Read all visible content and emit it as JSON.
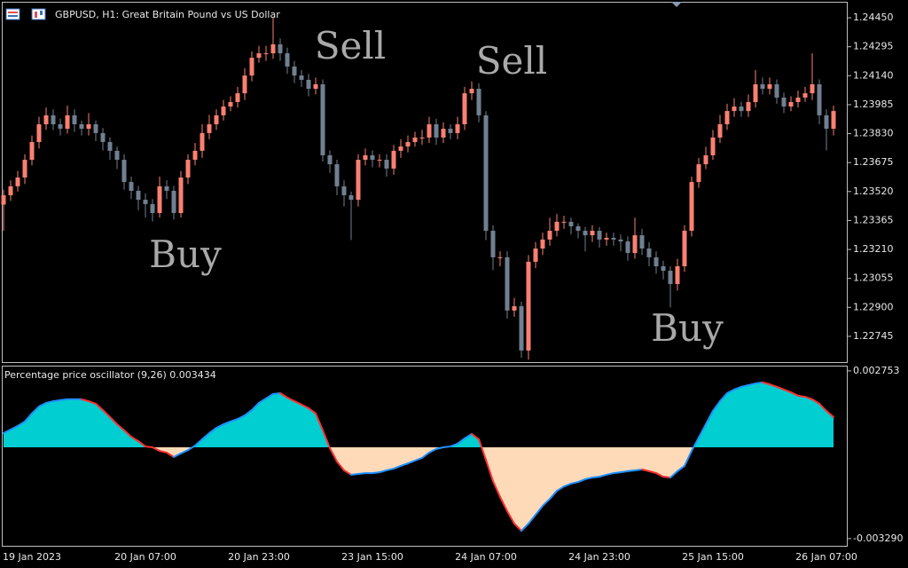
{
  "chart_data": [
    {
      "type": "candlestick",
      "title": "GBPUSD, H1:  Great Britain Pound vs US Dollar",
      "annotations": [
        "Sell",
        "Sell",
        "Buy",
        "Buy"
      ],
      "categories": [
        null,
        null,
        null,
        null,
        "19 Jan 2023",
        null,
        null,
        null,
        null,
        null,
        null,
        null,
        null,
        null,
        null,
        null,
        null,
        null,
        null,
        null,
        "20 Jan 07:00",
        null,
        null,
        null,
        null,
        null,
        null,
        null,
        null,
        null,
        null,
        null,
        null,
        null,
        null,
        null,
        "20 Jan 23:00",
        null,
        null,
        null,
        null,
        null,
        null,
        null,
        null,
        null,
        null,
        null,
        null,
        null,
        null,
        null,
        "23 Jan 15:00",
        null,
        null,
        null,
        null,
        null,
        null,
        null,
        null,
        null,
        null,
        null,
        null,
        null,
        null,
        null,
        "24 Jan 07:00",
        null,
        null,
        null,
        null,
        null,
        null,
        null,
        null,
        null,
        null,
        null,
        null,
        null,
        null,
        null,
        "24 Jan 23:00",
        null,
        null,
        null,
        null,
        null,
        null,
        null,
        null,
        null,
        null,
        null,
        null,
        null,
        null,
        null,
        "25 Jan 15:00",
        null,
        null,
        null,
        null,
        null,
        null,
        null,
        null,
        null,
        null,
        null,
        null,
        null,
        null,
        null,
        "26 Jan 07:00",
        null
      ],
      "open": [
        1.2345,
        1.235,
        1.23548,
        1.23595,
        1.2369,
        1.23785,
        1.2388,
        1.23928,
        1.2388,
        1.23856,
        1.23928,
        1.2388,
        1.23856,
        1.2388,
        1.23833,
        1.23785,
        1.23738,
        1.2369,
        1.23571,
        1.23524,
        1.23476,
        1.23453,
        1.23405,
        1.23548,
        1.23524,
        1.23405,
        1.23595,
        1.2369,
        1.23738,
        1.23833,
        1.2388,
        1.23928,
        1.23975,
        1.23999,
        1.24046,
        1.24141,
        1.24236,
        1.2426,
        1.2426,
        1.24308,
        1.2426,
        1.24189,
        1.24141,
        1.24118,
        1.2407,
        1.24094,
        1.23714,
        1.23666,
        1.23548,
        1.235,
        1.23476,
        1.2369,
        1.23714,
        1.2369,
        1.2369,
        1.23643,
        1.23738,
        1.23761,
        1.23785,
        1.23809,
        1.23809,
        1.2388,
        1.23809,
        1.23856,
        1.23833,
        1.2388,
        1.24046,
        1.2407,
        1.23928,
        1.2331,
        1.23168,
        1.23168,
        1.22883,
        1.22906,
        1.22669,
        1.23144,
        1.23215,
        1.23263,
        1.2331,
        1.23358,
        1.23358,
        1.23334,
        1.2331,
        1.23286,
        1.2331,
        1.23263,
        1.23272,
        1.23263,
        1.23253,
        1.23191,
        1.23286,
        1.23215,
        1.23168,
        1.2312,
        1.23096,
        1.23025,
        1.2312,
        1.2331,
        1.23571,
        1.23666,
        1.23714,
        1.23809,
        1.2388,
        1.23951,
        1.23975,
        1.23951,
        1.23999,
        1.24094,
        1.2407,
        1.24094,
        1.24023,
        1.23975,
        1.23999,
        1.24023,
        1.24046,
        1.24094,
        1.23928,
        1.23856
      ],
      "high": [
        1.2353,
        1.2358,
        1.2363,
        1.2372,
        1.2382,
        1.2392,
        1.2397,
        1.2396,
        1.2391,
        1.2398,
        1.2396,
        1.239,
        1.2394,
        1.239,
        1.2386,
        1.2381,
        1.2376,
        1.2372,
        1.236,
        1.2355,
        1.2351,
        1.2348,
        1.236,
        1.2358,
        1.2355,
        1.2363,
        1.2372,
        1.2378,
        1.2388,
        1.2393,
        1.2396,
        1.2401,
        1.2403,
        1.2408,
        1.2418,
        1.2427,
        1.243,
        1.243,
        1.2445,
        1.2434,
        1.2429,
        1.2422,
        1.2417,
        1.2415,
        1.2413,
        1.2412,
        1.2374,
        1.2369,
        1.2358,
        1.2352,
        1.2372,
        1.2375,
        1.2374,
        1.2372,
        1.2372,
        1.2377,
        1.238,
        1.2382,
        1.2384,
        1.2385,
        1.2392,
        1.2391,
        1.2389,
        1.2388,
        1.2392,
        1.2408,
        1.2411,
        1.241,
        1.2395,
        1.2334,
        1.232,
        1.232,
        1.2295,
        1.2293,
        1.2318,
        1.2325,
        1.233,
        1.2338,
        1.234,
        1.2339,
        1.2338,
        1.2335,
        1.2333,
        1.2334,
        1.2333,
        1.233,
        1.233,
        1.2329,
        1.2328,
        1.2338,
        1.2332,
        1.2325,
        1.232,
        1.2315,
        1.2312,
        1.2316,
        1.2334,
        1.236,
        1.237,
        1.2376,
        1.2385,
        1.2393,
        1.2399,
        1.2402,
        1.24,
        1.2404,
        1.2417,
        1.2413,
        1.2413,
        1.2412,
        1.2405,
        1.2403,
        1.2406,
        1.2408,
        1.2426,
        1.2412,
        1.2396,
        1.2398
      ],
      "low": [
        1.2331,
        1.2347,
        1.2352,
        1.2356,
        1.2366,
        1.2375,
        1.2385,
        1.2385,
        1.2382,
        1.2383,
        1.2384,
        1.2382,
        1.2382,
        1.2379,
        1.2374,
        1.2369,
        1.2364,
        1.2353,
        1.2348,
        1.2342,
        1.2338,
        1.2336,
        1.2338,
        1.2348,
        1.2337,
        1.2338,
        1.2356,
        1.2366,
        1.237,
        1.238,
        1.2385,
        1.239,
        1.2395,
        1.2397,
        1.2401,
        1.2411,
        1.2421,
        1.2422,
        1.2423,
        1.2422,
        1.2415,
        1.241,
        1.2408,
        1.2403,
        1.2404,
        1.2368,
        1.2362,
        1.235,
        1.2344,
        1.2326,
        1.2344,
        1.2366,
        1.2365,
        1.2365,
        1.236,
        1.2361,
        1.237,
        1.2373,
        1.2376,
        1.2377,
        1.2378,
        1.2377,
        1.2378,
        1.238,
        1.238,
        1.2385,
        1.2401,
        1.2389,
        1.2326,
        1.231,
        1.2312,
        1.2284,
        1.2285,
        1.2263,
        1.2262,
        1.2311,
        1.2318,
        1.2323,
        1.2328,
        1.2332,
        1.2329,
        1.2327,
        1.232,
        1.2325,
        1.2322,
        1.2323,
        1.2323,
        1.232,
        1.2315,
        1.2316,
        1.2318,
        1.2312,
        1.2308,
        1.2305,
        1.229,
        1.2299,
        1.2309,
        1.2328,
        1.2354,
        1.2364,
        1.2369,
        1.2378,
        1.2385,
        1.2392,
        1.2392,
        1.2392,
        1.2397,
        1.2404,
        1.2404,
        1.2399,
        1.2394,
        1.2395,
        1.2397,
        1.24,
        1.2401,
        1.2388,
        1.2374,
        1.2382
      ],
      "close": [
        1.235,
        1.23548,
        1.23595,
        1.2369,
        1.23785,
        1.2388,
        1.23928,
        1.2388,
        1.23856,
        1.23928,
        1.2388,
        1.23856,
        1.2388,
        1.23833,
        1.23785,
        1.23738,
        1.2369,
        1.23571,
        1.23524,
        1.23476,
        1.23453,
        1.23405,
        1.23548,
        1.23524,
        1.23405,
        1.23595,
        1.2369,
        1.23738,
        1.23833,
        1.2388,
        1.23928,
        1.23975,
        1.23999,
        1.24046,
        1.24141,
        1.24236,
        1.2426,
        1.2426,
        1.24308,
        1.2426,
        1.24189,
        1.24141,
        1.24118,
        1.2407,
        1.24094,
        1.23714,
        1.23666,
        1.23548,
        1.235,
        1.23476,
        1.2369,
        1.23714,
        1.2369,
        1.2369,
        1.23643,
        1.23738,
        1.23761,
        1.23785,
        1.23809,
        1.23809,
        1.2388,
        1.23809,
        1.23856,
        1.23833,
        1.2388,
        1.24046,
        1.2407,
        1.23928,
        1.2331,
        1.23168,
        1.23168,
        1.22883,
        1.22906,
        1.22669,
        1.23144,
        1.23215,
        1.23263,
        1.2331,
        1.23358,
        1.23358,
        1.23334,
        1.2331,
        1.23286,
        1.2331,
        1.23263,
        1.23272,
        1.23263,
        1.23253,
        1.23191,
        1.23286,
        1.23215,
        1.23168,
        1.2312,
        1.23096,
        1.23025,
        1.2312,
        1.2331,
        1.23571,
        1.23666,
        1.23714,
        1.23809,
        1.2388,
        1.23951,
        1.23975,
        1.23951,
        1.23999,
        1.24094,
        1.2407,
        1.24094,
        1.24023,
        1.23975,
        1.23999,
        1.24023,
        1.24046,
        1.24094,
        1.23928,
        1.23856,
        1.23951
      ],
      "up_color": "#fa8072",
      "down_color": "#708090",
      "ylim": [
        1.22607,
        1.24531
      ],
      "yticks": [
        {
          "value": 1.2445,
          "label": "1.24450"
        },
        1.24295,
        {
          "value": 1.2414,
          "label": "1.24140"
        },
        1.23985,
        {
          "value": 1.2383,
          "label": "1.23830"
        },
        1.23675,
        {
          "value": 1.2352,
          "label": "1.23520"
        },
        1.23365,
        {
          "value": 1.2321,
          "label": "1.23210"
        },
        1.23055,
        {
          "value": 1.229,
          "label": "1.22900"
        },
        1.22745
      ]
    },
    {
      "type": "area",
      "title": "Percentage price oscillator (9,26) 0.003434",
      "values": [
        0.00051,
        0.00064,
        0.00077,
        0.00093,
        0.00122,
        0.00147,
        0.0016,
        0.00166,
        0.0017,
        0.00173,
        0.00173,
        0.00173,
        0.00166,
        0.00157,
        0.00134,
        0.00109,
        0.00083,
        0.00061,
        0.00038,
        0.00022,
        3e-05,
        0,
        -0.00013,
        -0.00019,
        -0.00035,
        -0.00022,
        -0.0001,
        6e-05,
        0.00029,
        0.00051,
        0.0007,
        0.00083,
        0.00093,
        0.00102,
        0.00115,
        0.00134,
        0.0016,
        0.00176,
        0.00192,
        0.00195,
        0.00179,
        0.00166,
        0.00154,
        0.00141,
        0.00122,
        0.00061,
        -3e-05,
        -0.00051,
        -0.00083,
        -0.00099,
        -0.00096,
        -0.00093,
        -0.00093,
        -0.0009,
        -0.00083,
        -0.00077,
        -0.00067,
        -0.00058,
        -0.00048,
        -0.00038,
        -0.00019,
        -6e-05,
        0,
        3e-05,
        0.00013,
        0.00032,
        0.00048,
        0.00029,
        -0.00045,
        -0.00122,
        -0.00179,
        -0.0023,
        -0.00275,
        -0.00301,
        -0.00275,
        -0.00243,
        -0.00211,
        -0.00186,
        -0.00157,
        -0.00141,
        -0.00131,
        -0.00125,
        -0.00115,
        -0.00109,
        -0.00106,
        -0.00099,
        -0.00093,
        -0.0009,
        -0.00086,
        -0.00083,
        -0.0008,
        -0.00086,
        -0.00093,
        -0.00106,
        -0.00109,
        -0.00086,
        -0.00067,
        -0.00013,
        0.00035,
        0.00083,
        0.00131,
        0.00166,
        0.00195,
        0.00208,
        0.00218,
        0.00224,
        0.0023,
        0.00234,
        0.00227,
        0.00218,
        0.00208,
        0.00198,
        0.00186,
        0.00182,
        0.00173,
        0.00157,
        0.00131,
        0.00109
      ],
      "positive_color": "#00ced1",
      "negative_color": "#ffdab9",
      "rising_color": "#1e90ff",
      "falling_color": "#ff3030",
      "ylim": [
        -0.00355,
        0.00291
      ],
      "yticks": [
        0.002753,
        {
          "value": -0.00329,
          "label": "-0.003290"
        }
      ]
    }
  ]
}
